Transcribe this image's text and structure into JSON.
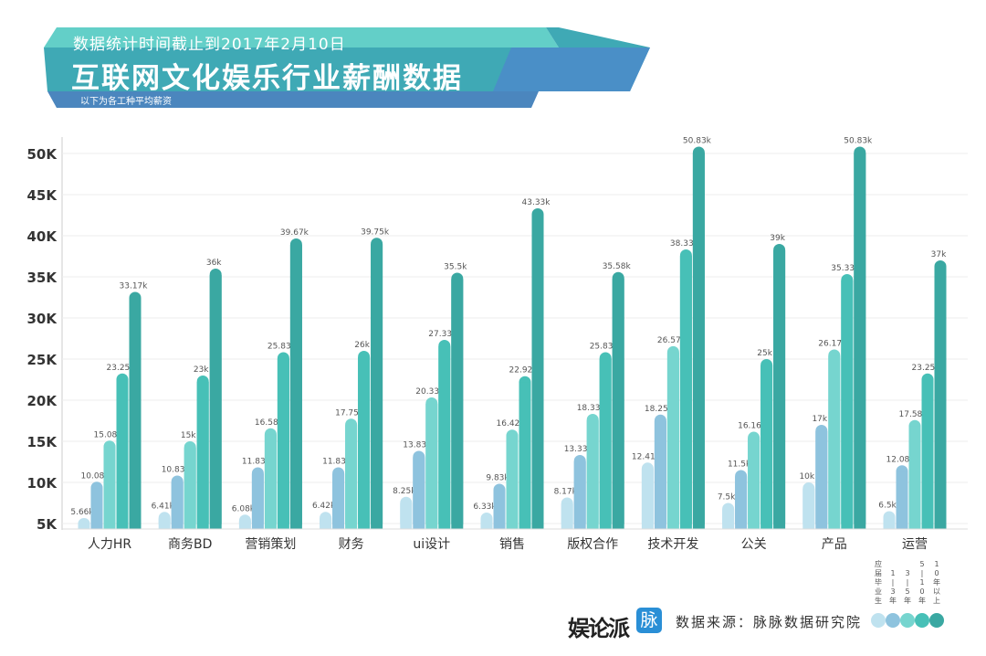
{
  "header": {
    "subtitle": "数据统计时间截止到2017年2月10日",
    "title": "互联网文化娱乐行业薪酬数据",
    "note": "以下为各工种平均薪资"
  },
  "footer": {
    "logo_text": "娱论派",
    "maimai_icon_text": "脉",
    "source": "数据来源：脉脉数据研究院"
  },
  "chart_data": {
    "type": "bar",
    "categories": [
      "人力HR",
      "商务BD",
      "营销策划",
      "财务",
      "ui设计",
      "销售",
      "版权合作",
      "技术开发",
      "公关",
      "产品",
      "运营"
    ],
    "series": [
      {
        "name": "应届毕业生",
        "color": "#bfe2ef",
        "values": [
          5.66,
          6.41,
          6.08,
          6.42,
          8.25,
          6.33,
          8.17,
          12.41,
          7.5,
          10,
          6.5
        ],
        "labels": [
          "5.66k",
          "6.41k",
          "6.08k",
          "6.42k",
          "8.25k",
          "6.33k",
          "8.17k",
          "12.41k",
          "7.5k",
          "10k",
          "6.5k"
        ]
      },
      {
        "name": "1-3年",
        "color": "#8ec3de",
        "values": [
          10.08,
          10.83,
          11.83,
          11.83,
          13.83,
          9.83,
          13.33,
          18.25,
          11.5,
          17,
          12.08
        ],
        "labels": [
          "10.08k",
          "10.83k",
          "11.83k",
          "11.83k",
          "13.83k",
          "9.83k",
          "13.33k",
          "18.25k",
          "11.5k",
          "17k",
          "12.08k"
        ]
      },
      {
        "name": "3-5年",
        "color": "#76d5cf",
        "values": [
          15.08,
          15,
          16.58,
          17.75,
          20.33,
          16.42,
          18.33,
          26.57,
          16.16,
          26.17,
          17.58
        ],
        "labels": [
          "15.08k",
          "15k",
          "16.58k",
          "17.75k",
          "20.33k",
          "16.42k",
          "18.33k",
          "26.57k",
          "16.16k",
          "26.17k",
          "17.58k"
        ]
      },
      {
        "name": "5-10年",
        "color": "#47c0b7",
        "values": [
          23.25,
          23,
          25.83,
          26,
          27.33,
          22.92,
          25.83,
          38.33,
          25,
          35.33,
          23.25
        ],
        "labels": [
          "23.25k",
          "23k",
          "25.83k",
          "26k",
          "27.33k",
          "22.92k",
          "25.83k",
          "38.33k",
          "25k",
          "35.33k",
          "23.25k"
        ]
      },
      {
        "name": "10年以上",
        "color": "#3aa8a2",
        "values": [
          33.17,
          36,
          39.67,
          39.75,
          35.5,
          43.33,
          35.58,
          50.83,
          39,
          50.83,
          37
        ],
        "labels": [
          "33.17k",
          "36k",
          "39.67k",
          "39.75k",
          "35.5k",
          "43.33k",
          "35.58k",
          "50.83k",
          "39k",
          "50.83k",
          "37k"
        ]
      }
    ],
    "yticks": [
      "5K",
      "10K",
      "15K",
      "20K",
      "25K",
      "30K",
      "35K",
      "40K",
      "45K",
      "50K"
    ],
    "ytick_values": [
      5,
      10,
      15,
      20,
      25,
      30,
      35,
      40,
      45,
      50
    ],
    "ylim": [
      5,
      50
    ],
    "grid": true,
    "legend": {
      "placement": "bottom-right",
      "labels": [
        "应届毕业生",
        "1-3年",
        "3-5年",
        "5-10年",
        "10年以上"
      ]
    }
  }
}
